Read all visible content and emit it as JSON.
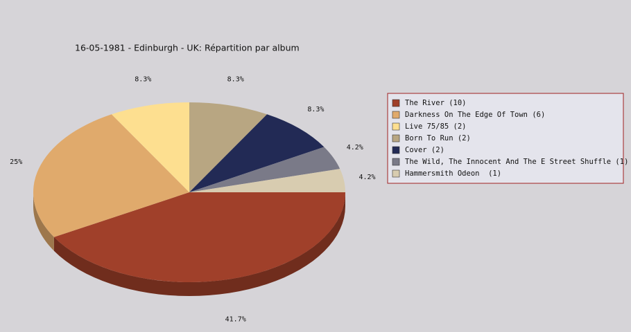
{
  "chart_data": {
    "type": "pie3d",
    "title": "16-05-1981 - Edinburgh - UK:  Répartition par album",
    "categories": [
      "The River (10)",
      "Darkness On The Edge Of Town (6)",
      "Live 75/85 (2)",
      "Born To Run (2)",
      "Cover (2)",
      "The Wild, The Innocent And The E Street Shuffle (1)",
      "Hammersmith Odeon  (1)"
    ],
    "values": [
      41.7,
      25,
      8.3,
      8.3,
      8.3,
      4.2,
      4.2
    ],
    "value_labels": [
      "41.7%",
      "25%",
      "8.3%",
      "8.3%",
      "8.3%",
      "4.2%",
      "4.2%"
    ],
    "colors": [
      "#a0402a",
      "#e0aa6c",
      "#fddf90",
      "#b8a682",
      "#222a55",
      "#7a7a88",
      "#d8ccb0"
    ],
    "legend": "right"
  }
}
